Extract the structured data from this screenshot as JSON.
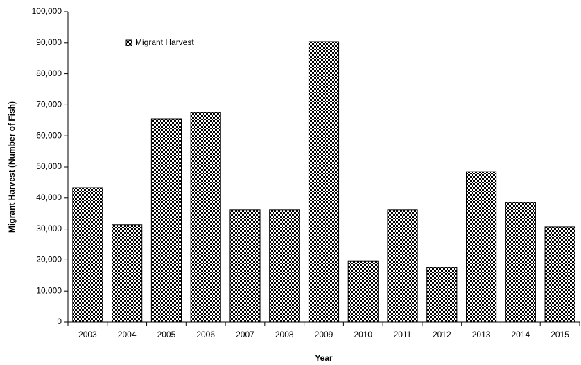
{
  "chart_data": {
    "type": "bar",
    "x_label": "Year",
    "y_label": "Migrant Harvest (Number of Fish)",
    "categories": [
      "2003",
      "2004",
      "2005",
      "2006",
      "2007",
      "2008",
      "2009",
      "2010",
      "2011",
      "2012",
      "2013",
      "2014",
      "2015"
    ],
    "series": [
      {
        "name": "Migrant Harvest",
        "color": "#000000",
        "values": [
          43300,
          31300,
          65400,
          67600,
          36200,
          36200,
          90400,
          19600,
          36200,
          17600,
          48400,
          38600,
          30600
        ]
      }
    ],
    "ylim": [
      0,
      100000
    ],
    "yticks": [
      0,
      {
        "value": 10000,
        "label": "10,000"
      },
      {
        "value": 20000,
        "label": "20,000"
      },
      {
        "value": 30000,
        "label": "30,000"
      },
      {
        "value": 40000,
        "label": "40,000"
      },
      {
        "value": 50000,
        "label": "50,000"
      },
      {
        "value": 60000,
        "label": "60,000"
      },
      {
        "value": 70000,
        "label": "70,000"
      },
      {
        "value": 80000,
        "label": "80,000"
      },
      {
        "value": 90000,
        "label": "90,000"
      },
      {
        "value": 100000,
        "label": "100,000"
      }
    ],
    "grid": false,
    "legend": "upper left"
  }
}
